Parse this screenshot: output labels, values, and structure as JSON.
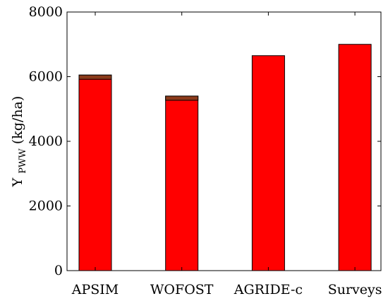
{
  "chart_data": {
    "type": "bar",
    "title": "",
    "categories": [
      "APSIM",
      "WOFOST",
      "AGRIDE-c",
      "Surveys"
    ],
    "series": [
      {
        "values": [
          6050,
          5400,
          6650,
          7000
        ]
      }
    ],
    "ylabel": {
      "main": "Y",
      "subscript": "PWW",
      "unit": "(kg/ha)"
    },
    "xlabel": "",
    "ylim": [
      0,
      8000
    ],
    "yticks": [
      0,
      2000,
      4000,
      6000,
      8000
    ],
    "grid": false,
    "legend": "none",
    "colors": {
      "bar_fill": "#ff0000",
      "bar_stroke": "#000000",
      "bar_top_band": "#8b3a1a",
      "axis": "#000000"
    }
  }
}
